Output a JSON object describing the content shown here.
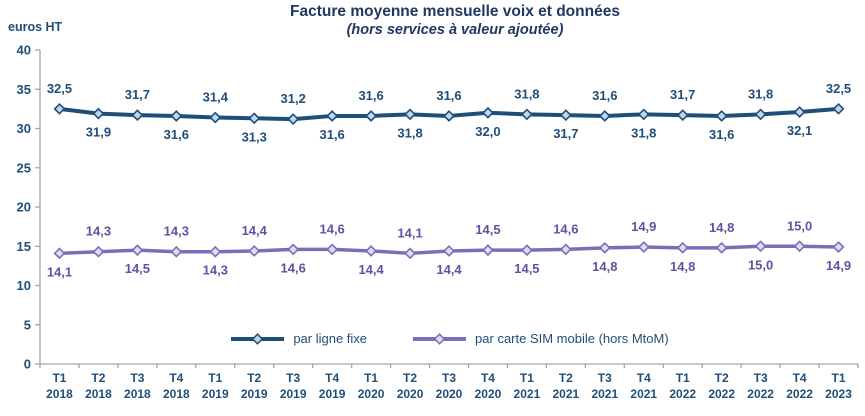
{
  "header": {
    "title": "Facture moyenne mensuelle voix et données",
    "subtitle": "(hors services à valeur ajoutée)",
    "y_axis_unit": "euros HT"
  },
  "chart_data": {
    "type": "line",
    "title": "Facture moyenne mensuelle voix et données",
    "subtitle": "(hors services à valeur ajoutée)",
    "ylabel": "euros HT",
    "xlabel": "",
    "ylim": [
      0,
      40
    ],
    "ytick_step": 5,
    "grid": false,
    "legend_position": "bottom-center-inside",
    "axis_color": "#A6A6A6",
    "tick_label_color": "#1F4E79",
    "categories": [
      "T1 2018",
      "T2 2018",
      "T3 2018",
      "T4 2018",
      "T1 2019",
      "T2 2019",
      "T3 2019",
      "T4 2019",
      "T1 2020",
      "T2 2020",
      "T3 2020",
      "T4 2020",
      "T1 2021",
      "T2 2021",
      "T3 2021",
      "T4 2021",
      "T1 2022",
      "T2 2022",
      "T3 2022",
      "T4 2022",
      "T1 2023"
    ],
    "series": [
      {
        "name": "par ligne fixe",
        "color": "#1F4E79",
        "marker": "diamond",
        "marker_fill": "#BDD7EE",
        "label_color": "#1F4E79",
        "label_first_position": "above",
        "values": [
          32.5,
          31.9,
          31.7,
          31.6,
          31.4,
          31.3,
          31.2,
          31.6,
          31.6,
          31.8,
          31.6,
          32.0,
          31.8,
          31.7,
          31.6,
          31.8,
          31.7,
          31.6,
          31.8,
          32.1,
          32.5
        ],
        "labels": [
          "32,5",
          "31,9",
          "31,7",
          "31,6",
          "31,4",
          "31,3",
          "31,2",
          "31,6",
          "31,6",
          "31,8",
          "31,6",
          "32,0",
          "31,8",
          "31,7",
          "31,6",
          "31,8",
          "31,7",
          "31,6",
          "31,8",
          "32,1",
          "32,5"
        ]
      },
      {
        "name": "par carte SIM mobile (hors MtoM)",
        "color": "#7670B8",
        "marker": "diamond",
        "marker_fill": "#E0DDF0",
        "label_color": "#5B54A4",
        "label_first_position": "below",
        "values": [
          14.1,
          14.3,
          14.5,
          14.3,
          14.3,
          14.4,
          14.6,
          14.6,
          14.4,
          14.1,
          14.4,
          14.5,
          14.5,
          14.6,
          14.8,
          14.9,
          14.8,
          14.8,
          15.0,
          15.0,
          14.9
        ],
        "labels": [
          "14,1",
          "14,3",
          "14,5",
          "14,3",
          "14,3",
          "14,4",
          "14,6",
          "14,6",
          "14,4",
          "14,1",
          "14,4",
          "14,5",
          "14,5",
          "14,6",
          "14,8",
          "14,9",
          "14,8",
          "14,8",
          "15,0",
          "15,0",
          "14,9"
        ]
      }
    ]
  }
}
